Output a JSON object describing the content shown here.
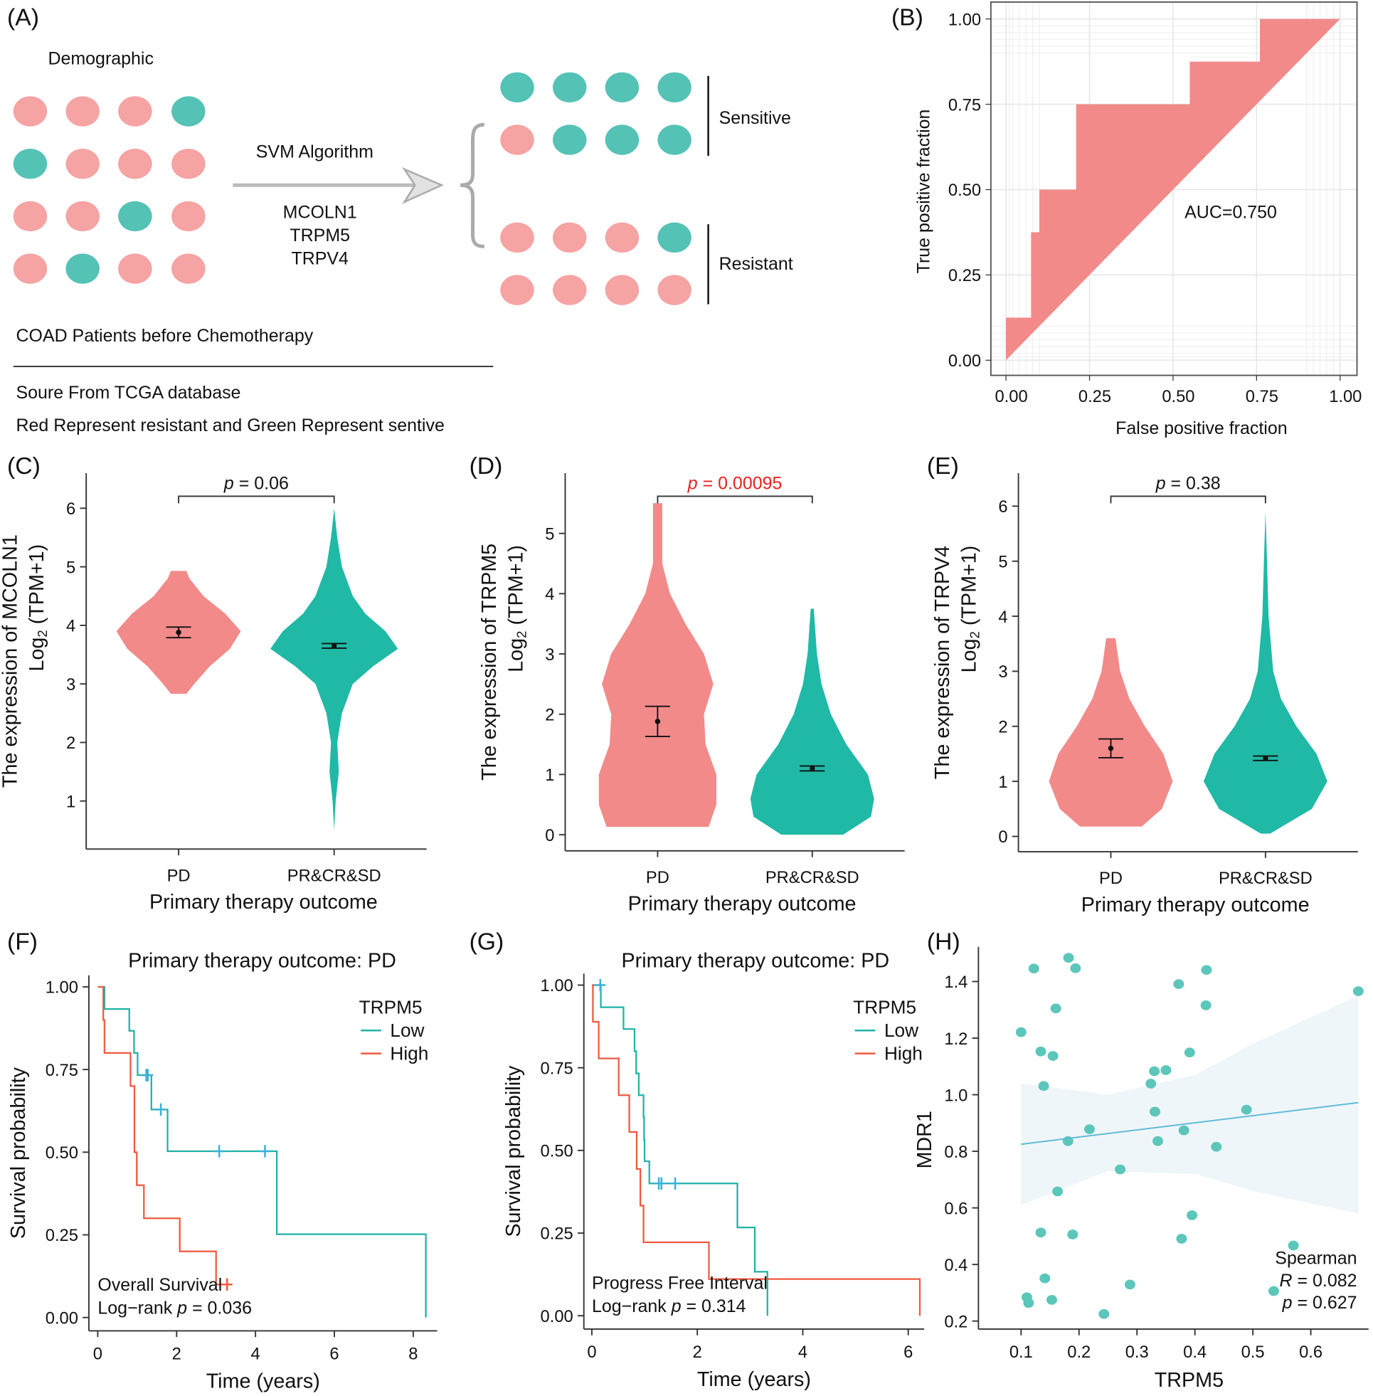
{
  "diagram": {
    "panel_label": "(A)",
    "title": "Demographic",
    "algorithm": "SVM Algorithm",
    "genes": [
      "MCOLN1",
      "TRPM5",
      "TRPV4"
    ],
    "sensitive_label": "Sensitive",
    "resistant_label": "Resistant",
    "caption": "COAD Patients before Chemotherapy",
    "source": "Soure From TCGA database",
    "legend_note": "Red Represent resistant and Green Represent sentive",
    "input_grid": [
      "RRRG",
      "GRRR",
      "RRGR",
      "RGRR"
    ],
    "sensitive_grid": [
      "GGGG",
      "RGGG"
    ],
    "resistant_grid": [
      "RRRG",
      "RRRR"
    ],
    "colors": {
      "R": "#f5a3a3",
      "G": "#55c2b6"
    }
  },
  "chart_data": [
    {
      "panel_label": "(B)",
      "type": "area",
      "xlabel": "False positive fraction",
      "ylabel": "True positive fraction",
      "xlim": [
        0,
        1
      ],
      "ylim": [
        0,
        1
      ],
      "x_ticks": [
        0,
        0.25,
        0.5,
        0.75,
        1
      ],
      "x_tick_labels": [
        "0.00",
        "0.25",
        "0.50",
        "0.75",
        "1.00"
      ],
      "y_ticks": [
        0,
        0.25,
        0.5,
        0.75,
        1
      ],
      "y_tick_labels": [
        "0.00",
        "0.25",
        "0.50",
        "0.75",
        "1.00"
      ],
      "roc": [
        [
          0,
          0
        ],
        [
          0,
          0.125
        ],
        [
          0.075,
          0.125
        ],
        [
          0.075,
          0.375
        ],
        [
          0.1,
          0.375
        ],
        [
          0.1,
          0.5
        ],
        [
          0.21,
          0.5
        ],
        [
          0.21,
          0.75
        ],
        [
          0.55,
          0.75
        ],
        [
          0.55,
          0.875
        ],
        [
          0.76,
          0.875
        ],
        [
          0.76,
          1
        ],
        [
          1,
          1
        ]
      ],
      "annotation": "AUC=0.750",
      "auc": 0.75,
      "fill": "#f28a8a",
      "grid": true
    },
    {
      "panel_label": "(C)",
      "type": "violin",
      "y_label_line1": "The expression of MCOLN1",
      "y_label_log": "Log",
      "y_label_sub": "2",
      "y_label_rest": " (TPM+1)",
      "xlabel": "Primary therapy outcome",
      "categories": [
        "PD",
        "PR&CR&SD"
      ],
      "ylim": [
        0.3,
        6.6
      ],
      "y_ticks": [
        1,
        2,
        3,
        4,
        5,
        6
      ],
      "y_tick_labels": [
        "1",
        "2",
        "3",
        "4",
        "5",
        "6"
      ],
      "p_symbol": "p",
      "p_text": " = 0.06",
      "p_color": "#111111",
      "groups": [
        {
          "name": "PD",
          "color": "#f28a8a",
          "mean": 3.88,
          "se": 0.09,
          "profile": [
            [
              2.83,
              0.05
            ],
            [
              3.0,
              0.1
            ],
            [
              3.3,
              0.2
            ],
            [
              3.6,
              0.33
            ],
            [
              3.9,
              0.4
            ],
            [
              4.2,
              0.3
            ],
            [
              4.5,
              0.16
            ],
            [
              4.8,
              0.07
            ],
            [
              4.93,
              0.05
            ]
          ]
        },
        {
          "name": "PR&CR&SD",
          "color": "#20b9a6",
          "mean": 3.65,
          "se": 0.04,
          "profile": [
            [
              0.5,
              0
            ],
            [
              1.0,
              0.01
            ],
            [
              1.5,
              0.03
            ],
            [
              2.0,
              0.02
            ],
            [
              2.5,
              0.05
            ],
            [
              3.0,
              0.12
            ],
            [
              3.3,
              0.25
            ],
            [
              3.6,
              0.41
            ],
            [
              3.9,
              0.33
            ],
            [
              4.2,
              0.2
            ],
            [
              4.5,
              0.12
            ],
            [
              5.0,
              0.05
            ],
            [
              5.5,
              0.02
            ],
            [
              6.0,
              0
            ]
          ]
        }
      ]
    },
    {
      "panel_label": "(D)",
      "type": "violin",
      "y_label_line1": "The expression of TRPM5",
      "y_label_log": "Log",
      "y_label_sub": "2",
      "y_label_rest": " (TPM+1)",
      "xlabel": "Primary therapy outcome",
      "categories": [
        "PD",
        "PR&CR&SD"
      ],
      "ylim": [
        -0.15,
        6.0
      ],
      "y_ticks": [
        0,
        1,
        2,
        3,
        4,
        5
      ],
      "y_tick_labels": [
        "0",
        "1",
        "2",
        "3",
        "4",
        "5"
      ],
      "p_symbol": "p",
      "p_text": " = 0.00095",
      "p_color": "#e8231f",
      "groups": [
        {
          "name": "PD",
          "color": "#f28a8a",
          "mean": 1.88,
          "se": 0.25,
          "profile": [
            [
              0.13,
              0.33
            ],
            [
              0.5,
              0.38
            ],
            [
              1.0,
              0.38
            ],
            [
              1.5,
              0.31
            ],
            [
              2.0,
              0.3
            ],
            [
              2.5,
              0.36
            ],
            [
              3.0,
              0.3
            ],
            [
              3.5,
              0.18
            ],
            [
              4.0,
              0.08
            ],
            [
              4.5,
              0.03
            ],
            [
              5.0,
              0.03
            ],
            [
              5.5,
              0.03
            ]
          ]
        },
        {
          "name": "PR&CR&SD",
          "color": "#20b9a6",
          "mean": 1.1,
          "se": 0.04,
          "profile": [
            [
              0,
              0.2
            ],
            [
              0.3,
              0.38
            ],
            [
              0.6,
              0.4
            ],
            [
              1.0,
              0.36
            ],
            [
              1.5,
              0.22
            ],
            [
              2.0,
              0.12
            ],
            [
              2.5,
              0.06
            ],
            [
              3.0,
              0.03
            ],
            [
              3.75,
              0.01
            ]
          ]
        }
      ]
    },
    {
      "panel_label": "(E)",
      "type": "violin",
      "y_label_line1": "The expression of TRPV4",
      "y_label_log": "Log",
      "y_label_sub": "2",
      "y_label_rest": " (TPM+1)",
      "xlabel": "Primary therapy outcome",
      "categories": [
        "PD",
        "PR&CR&SD"
      ],
      "ylim": [
        -0.15,
        6.6
      ],
      "y_ticks": [
        0,
        1,
        2,
        3,
        4,
        5,
        6
      ],
      "y_tick_labels": [
        "0",
        "1",
        "2",
        "3",
        "4",
        "5",
        "6"
      ],
      "p_symbol": "p",
      "p_text": " = 0.38",
      "p_color": "#111111",
      "groups": [
        {
          "name": "PD",
          "color": "#f28a8a",
          "mean": 1.6,
          "se": 0.17,
          "profile": [
            [
              0.18,
              0.2
            ],
            [
              0.5,
              0.33
            ],
            [
              1.0,
              0.4
            ],
            [
              1.5,
              0.34
            ],
            [
              2.0,
              0.22
            ],
            [
              2.5,
              0.12
            ],
            [
              3.0,
              0.06
            ],
            [
              3.6,
              0.03
            ]
          ]
        },
        {
          "name": "PR&CR&SD",
          "color": "#20b9a6",
          "mean": 1.42,
          "se": 0.04,
          "profile": [
            [
              0.05,
              0.03
            ],
            [
              0.5,
              0.3
            ],
            [
              1.0,
              0.4
            ],
            [
              1.5,
              0.33
            ],
            [
              2.0,
              0.2
            ],
            [
              2.5,
              0.1
            ],
            [
              3.0,
              0.05
            ],
            [
              4.0,
              0.02
            ],
            [
              5.0,
              0.01
            ],
            [
              5.9,
              0
            ]
          ]
        }
      ]
    },
    {
      "panel_label": "(F)",
      "type": "line",
      "title": "Primary therapy outcome: PD",
      "xlabel": "Time (years)",
      "ylabel": "Survival probability",
      "xlim": [
        0,
        8.5
      ],
      "ylim": [
        0,
        1
      ],
      "x_ticks": [
        0,
        2,
        4,
        6,
        8
      ],
      "x_tick_labels": [
        "0",
        "2",
        "4",
        "6",
        "8"
      ],
      "y_ticks": [
        0,
        0.25,
        0.5,
        0.75,
        1
      ],
      "y_tick_labels": [
        "0.00",
        "0.25",
        "0.50",
        "0.75",
        "1.00"
      ],
      "legend_title": "TRPM5",
      "legend_position": "top-right",
      "annotation_1": "Overall Survival",
      "annotation_2_pre": "Log−rank ",
      "annotation_2_p": "p",
      "annotation_2_post": " = 0.036",
      "series": [
        {
          "name": "Low",
          "color": "#20b2a5",
          "censor_color": "#3ab0d8",
          "end": 8.32,
          "steps": [
            [
              0,
              1
            ],
            [
              0.17,
              0.933
            ],
            [
              0.8,
              0.867
            ],
            [
              0.92,
              0.8
            ],
            [
              1.01,
              0.733
            ],
            [
              1.36,
              0.629
            ],
            [
              1.77,
              0.503
            ],
            [
              4.54,
              0.252
            ],
            [
              8.32,
              0
            ]
          ],
          "censors": [
            1.23,
            1.27,
            1.6,
            3.08,
            4.24
          ]
        },
        {
          "name": "High",
          "color": "#f0593f",
          "censor_color": "#f0593f",
          "end": 3.35,
          "steps": [
            [
              0,
              1
            ],
            [
              0.14,
              0.9
            ],
            [
              0.17,
              0.8
            ],
            [
              0.83,
              0.7
            ],
            [
              0.93,
              0.5
            ],
            [
              0.99,
              0.4
            ],
            [
              1.17,
              0.3
            ],
            [
              2.08,
              0.2
            ],
            [
              3.0,
              0.1
            ]
          ],
          "censors": [
            3.28
          ]
        }
      ]
    },
    {
      "panel_label": "(G)",
      "type": "line",
      "title": "Primary therapy outcome: PD",
      "xlabel": "Time (years)",
      "ylabel": "Survival probability",
      "xlim": [
        0,
        6.3
      ],
      "ylim": [
        0,
        1
      ],
      "x_ticks": [
        0,
        2,
        4,
        6
      ],
      "x_tick_labels": [
        "0",
        "2",
        "4",
        "6"
      ],
      "y_ticks": [
        0,
        0.25,
        0.5,
        0.75,
        1
      ],
      "y_tick_labels": [
        "0.00",
        "0.25",
        "0.50",
        "0.75",
        "1.00"
      ],
      "legend_title": "TRPM5",
      "legend_position": "top-right",
      "annotation_1": "Progress Free Interval",
      "annotation_2_pre": "Log−rank ",
      "annotation_2_p": "p",
      "annotation_2_post": " = 0.314",
      "series": [
        {
          "name": "Low",
          "color": "#20b2a5",
          "censor_color": "#3ab0d8",
          "end": 3.33,
          "steps": [
            [
              0,
              1
            ],
            [
              0.17,
              0.933
            ],
            [
              0.6,
              0.867
            ],
            [
              0.81,
              0.8
            ],
            [
              0.84,
              0.733
            ],
            [
              0.89,
              0.667
            ],
            [
              0.98,
              0.6
            ],
            [
              0.99,
              0.533
            ],
            [
              1.0,
              0.467
            ],
            [
              1.09,
              0.4
            ],
            [
              2.76,
              0.267
            ],
            [
              3.09,
              0.133
            ],
            [
              3.33,
              0
            ]
          ],
          "censors": [
            0.16,
            1.27,
            1.32,
            1.58
          ]
        },
        {
          "name": "High",
          "color": "#f0593f",
          "censor_color": "#f0593f",
          "end": 6.22,
          "steps": [
            [
              0,
              1
            ],
            [
              0.02,
              0.889
            ],
            [
              0.13,
              0.778
            ],
            [
              0.51,
              0.667
            ],
            [
              0.71,
              0.556
            ],
            [
              0.85,
              0.444
            ],
            [
              0.92,
              0.333
            ],
            [
              0.98,
              0.222
            ],
            [
              2.22,
              0.111
            ],
            [
              6.22,
              0
            ]
          ],
          "censors": []
        }
      ]
    },
    {
      "panel_label": "(H)",
      "type": "scatter",
      "xlabel": "TRPM5",
      "ylabel": "MDR1",
      "xlim": [
        0.05,
        0.7
      ],
      "ylim": [
        0.17,
        1.52
      ],
      "x_ticks": [
        0.1,
        0.2,
        0.3,
        0.4,
        0.5,
        0.6
      ],
      "x_tick_labels": [
        "0.1",
        "0.2",
        "0.3",
        "0.4",
        "0.5",
        "0.6"
      ],
      "y_ticks": [
        0.2,
        0.4,
        0.6,
        0.8,
        1.0,
        1.2,
        1.4
      ],
      "y_tick_labels": [
        "0.2",
        "0.4",
        "0.6",
        "0.8",
        "1.0",
        "1.2",
        "1.4"
      ],
      "point_color": "#5cc6ba",
      "line_color": "#5ab8d8",
      "band_color": "#eef6f9",
      "points": [
        [
          0.182,
          1.484
        ],
        [
          0.122,
          1.446
        ],
        [
          0.194,
          1.447
        ],
        [
          0.42,
          1.441
        ],
        [
          0.372,
          1.391
        ],
        [
          0.682,
          1.366
        ],
        [
          0.16,
          1.305
        ],
        [
          0.419,
          1.316
        ],
        [
          0.1,
          1.221
        ],
        [
          0.134,
          1.153
        ],
        [
          0.155,
          1.137
        ],
        [
          0.391,
          1.149
        ],
        [
          0.33,
          1.083
        ],
        [
          0.35,
          1.087
        ],
        [
          0.324,
          1.039
        ],
        [
          0.139,
          1.031
        ],
        [
          0.331,
          0.94
        ],
        [
          0.489,
          0.947
        ],
        [
          0.218,
          0.878
        ],
        [
          0.381,
          0.874
        ],
        [
          0.181,
          0.836
        ],
        [
          0.336,
          0.836
        ],
        [
          0.437,
          0.816
        ],
        [
          0.271,
          0.736
        ],
        [
          0.163,
          0.658
        ],
        [
          0.395,
          0.574
        ],
        [
          0.134,
          0.513
        ],
        [
          0.189,
          0.506
        ],
        [
          0.377,
          0.491
        ],
        [
          0.57,
          0.467
        ],
        [
          0.141,
          0.351
        ],
        [
          0.288,
          0.329
        ],
        [
          0.536,
          0.306
        ],
        [
          0.11,
          0.284
        ],
        [
          0.113,
          0.264
        ],
        [
          0.153,
          0.275
        ],
        [
          0.243,
          0.225
        ]
      ],
      "fit_line": {
        "x": [
          0.1,
          0.682
        ],
        "y": [
          0.825,
          0.972
        ]
      },
      "ci_band": {
        "x": [
          0.1,
          0.25,
          0.4,
          0.5,
          0.682
        ],
        "upper": [
          1.04,
          1.0,
          1.07,
          1.18,
          1.35
        ],
        "lower": [
          0.61,
          0.73,
          0.72,
          0.66,
          0.58
        ]
      },
      "stat_title": "Spearman",
      "r_symbol": "R",
      "r_text": " = 0.082",
      "p_symbol": "p",
      "p_text": " = 0.627"
    }
  ]
}
